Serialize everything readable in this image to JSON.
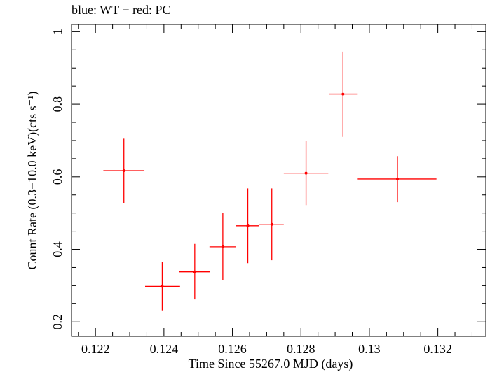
{
  "chart_data": {
    "type": "scatter",
    "title": "blue: WT − red: PC",
    "xlabel": "Time Since 55267.0 MJD (days)",
    "ylabel": "Count Rate (0.3−10.0 keV)(cts s⁻¹)",
    "xlim": [
      0.1213,
      0.1334
    ],
    "ylim": [
      0.16,
      1.02
    ],
    "xticks": [
      0.122,
      0.124,
      0.126,
      0.128,
      0.13,
      0.132
    ],
    "xtick_labels": [
      "0.122",
      "0.124",
      "0.126",
      "0.128",
      "0.13",
      "0.132"
    ],
    "yticks": [
      0.2,
      0.4,
      0.6,
      0.8,
      1.0
    ],
    "ytick_labels": [
      "0.2",
      "0.4",
      "0.6",
      "0.8",
      "1"
    ],
    "grid": false,
    "series": [
      {
        "color": "#ff0000",
        "points": [
          {
            "x": 0.12283,
            "y": 0.617,
            "xlo": 0.12223,
            "xhi": 0.12343,
            "ylo": 0.528,
            "yhi": 0.705
          },
          {
            "x": 0.12395,
            "y": 0.298,
            "xlo": 0.12345,
            "xhi": 0.12447,
            "ylo": 0.23,
            "yhi": 0.365
          },
          {
            "x": 0.1249,
            "y": 0.338,
            "xlo": 0.12445,
            "xhi": 0.12535,
            "ylo": 0.262,
            "yhi": 0.415
          },
          {
            "x": 0.12572,
            "y": 0.407,
            "xlo": 0.12533,
            "xhi": 0.12611,
            "ylo": 0.315,
            "yhi": 0.5
          },
          {
            "x": 0.12645,
            "y": 0.465,
            "xlo": 0.12611,
            "xhi": 0.12678,
            "ylo": 0.362,
            "yhi": 0.568
          },
          {
            "x": 0.12715,
            "y": 0.469,
            "xlo": 0.12678,
            "xhi": 0.1275,
            "ylo": 0.37,
            "yhi": 0.568
          },
          {
            "x": 0.12815,
            "y": 0.61,
            "xlo": 0.1275,
            "xhi": 0.1288,
            "ylo": 0.522,
            "yhi": 0.698
          },
          {
            "x": 0.12923,
            "y": 0.828,
            "xlo": 0.12882,
            "xhi": 0.12964,
            "ylo": 0.71,
            "yhi": 0.945
          },
          {
            "x": 0.13082,
            "y": 0.594,
            "xlo": 0.12964,
            "xhi": 0.13196,
            "ylo": 0.53,
            "yhi": 0.657
          }
        ]
      }
    ]
  }
}
